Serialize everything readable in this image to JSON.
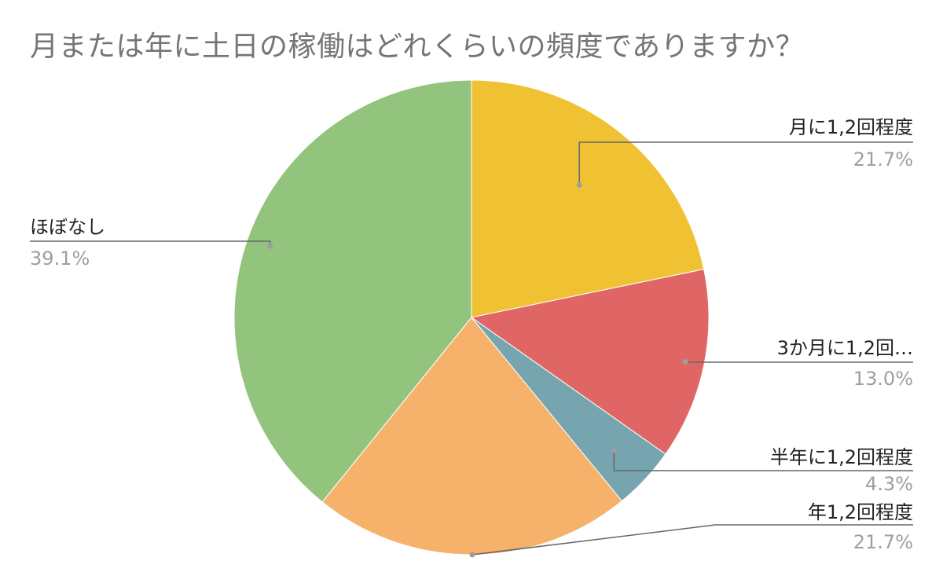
{
  "chart_data": {
    "type": "pie",
    "title": "月または年に土日の稼働はどれくらいの頻度でありますか？",
    "slices": [
      {
        "label": "月に1,2回程度",
        "percent_label": "21.7%",
        "value": 21.7,
        "color": "#f0c233"
      },
      {
        "label": "3か月に1,2回…",
        "percent_label": "13.0%",
        "value": 13.0,
        "color": "#e06666"
      },
      {
        "label": "半年に1,2回程度",
        "percent_label": "4.3%",
        "value": 4.3,
        "color": "#76a5af"
      },
      {
        "label": "年1,2回程度",
        "percent_label": "21.7%",
        "value": 21.7,
        "color": "#f6b26b"
      },
      {
        "label": "ほぼなし",
        "percent_label": "39.1%",
        "value": 39.1,
        "color": "#93c47d"
      }
    ],
    "legend": "none",
    "label_style": "callout"
  }
}
